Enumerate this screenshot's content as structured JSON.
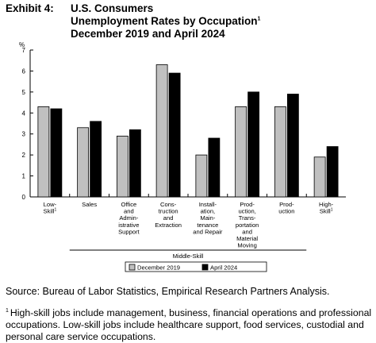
{
  "title": {
    "lead": "Exhibit 4:",
    "lines": [
      "U.S. Consumers",
      "Unemployment Rates by Occupation",
      "December 2019 and April 2024"
    ],
    "line1_marker": "1"
  },
  "chart_data": {
    "type": "bar",
    "unit_label": "%",
    "ylim": [
      0,
      7
    ],
    "yticks": [
      0,
      1,
      2,
      3,
      4,
      5,
      6,
      7
    ],
    "categories": [
      {
        "lines": [
          "Low-",
          "Skill"
        ],
        "marker": "1"
      },
      {
        "lines": [
          "Sales"
        ]
      },
      {
        "lines": [
          "Office",
          "and",
          "Admin-",
          "istrative",
          "Support"
        ]
      },
      {
        "lines": [
          "Cons-",
          "truction",
          "and",
          "Extraction"
        ]
      },
      {
        "lines": [
          "Install-",
          "ation,",
          "Main-",
          "tenance",
          "and Repair"
        ]
      },
      {
        "lines": [
          "Prod-",
          "uction,",
          "Trans-",
          "portation",
          "and",
          "Material",
          "Moving"
        ]
      },
      {
        "lines": [
          "Prod-",
          "uction"
        ]
      },
      {
        "lines": [
          "High-",
          "Skill"
        ],
        "marker": "1"
      }
    ],
    "series": [
      {
        "name": "December 2019",
        "color": "#c0c0c0",
        "values": [
          4.3,
          3.3,
          2.9,
          6.3,
          2.0,
          4.3,
          4.3,
          1.9
        ]
      },
      {
        "name": "April 2024",
        "color": "#000000",
        "values": [
          4.2,
          3.6,
          3.2,
          5.9,
          2.8,
          5.0,
          4.9,
          2.4
        ]
      }
    ],
    "group_label": "Middle-Skill",
    "group_range": [
      1,
      6
    ],
    "grid": false,
    "legend_position": "bottom-center"
  },
  "source": "Source: Bureau of Labor Statistics, Empirical Research Partners Analysis.",
  "footnote": {
    "marker": "1",
    "text": "High-skill jobs include management, business, financial operations and professional occupations. Low-skill jobs include healthcare support, food services, custodial and personal care service occupations."
  }
}
